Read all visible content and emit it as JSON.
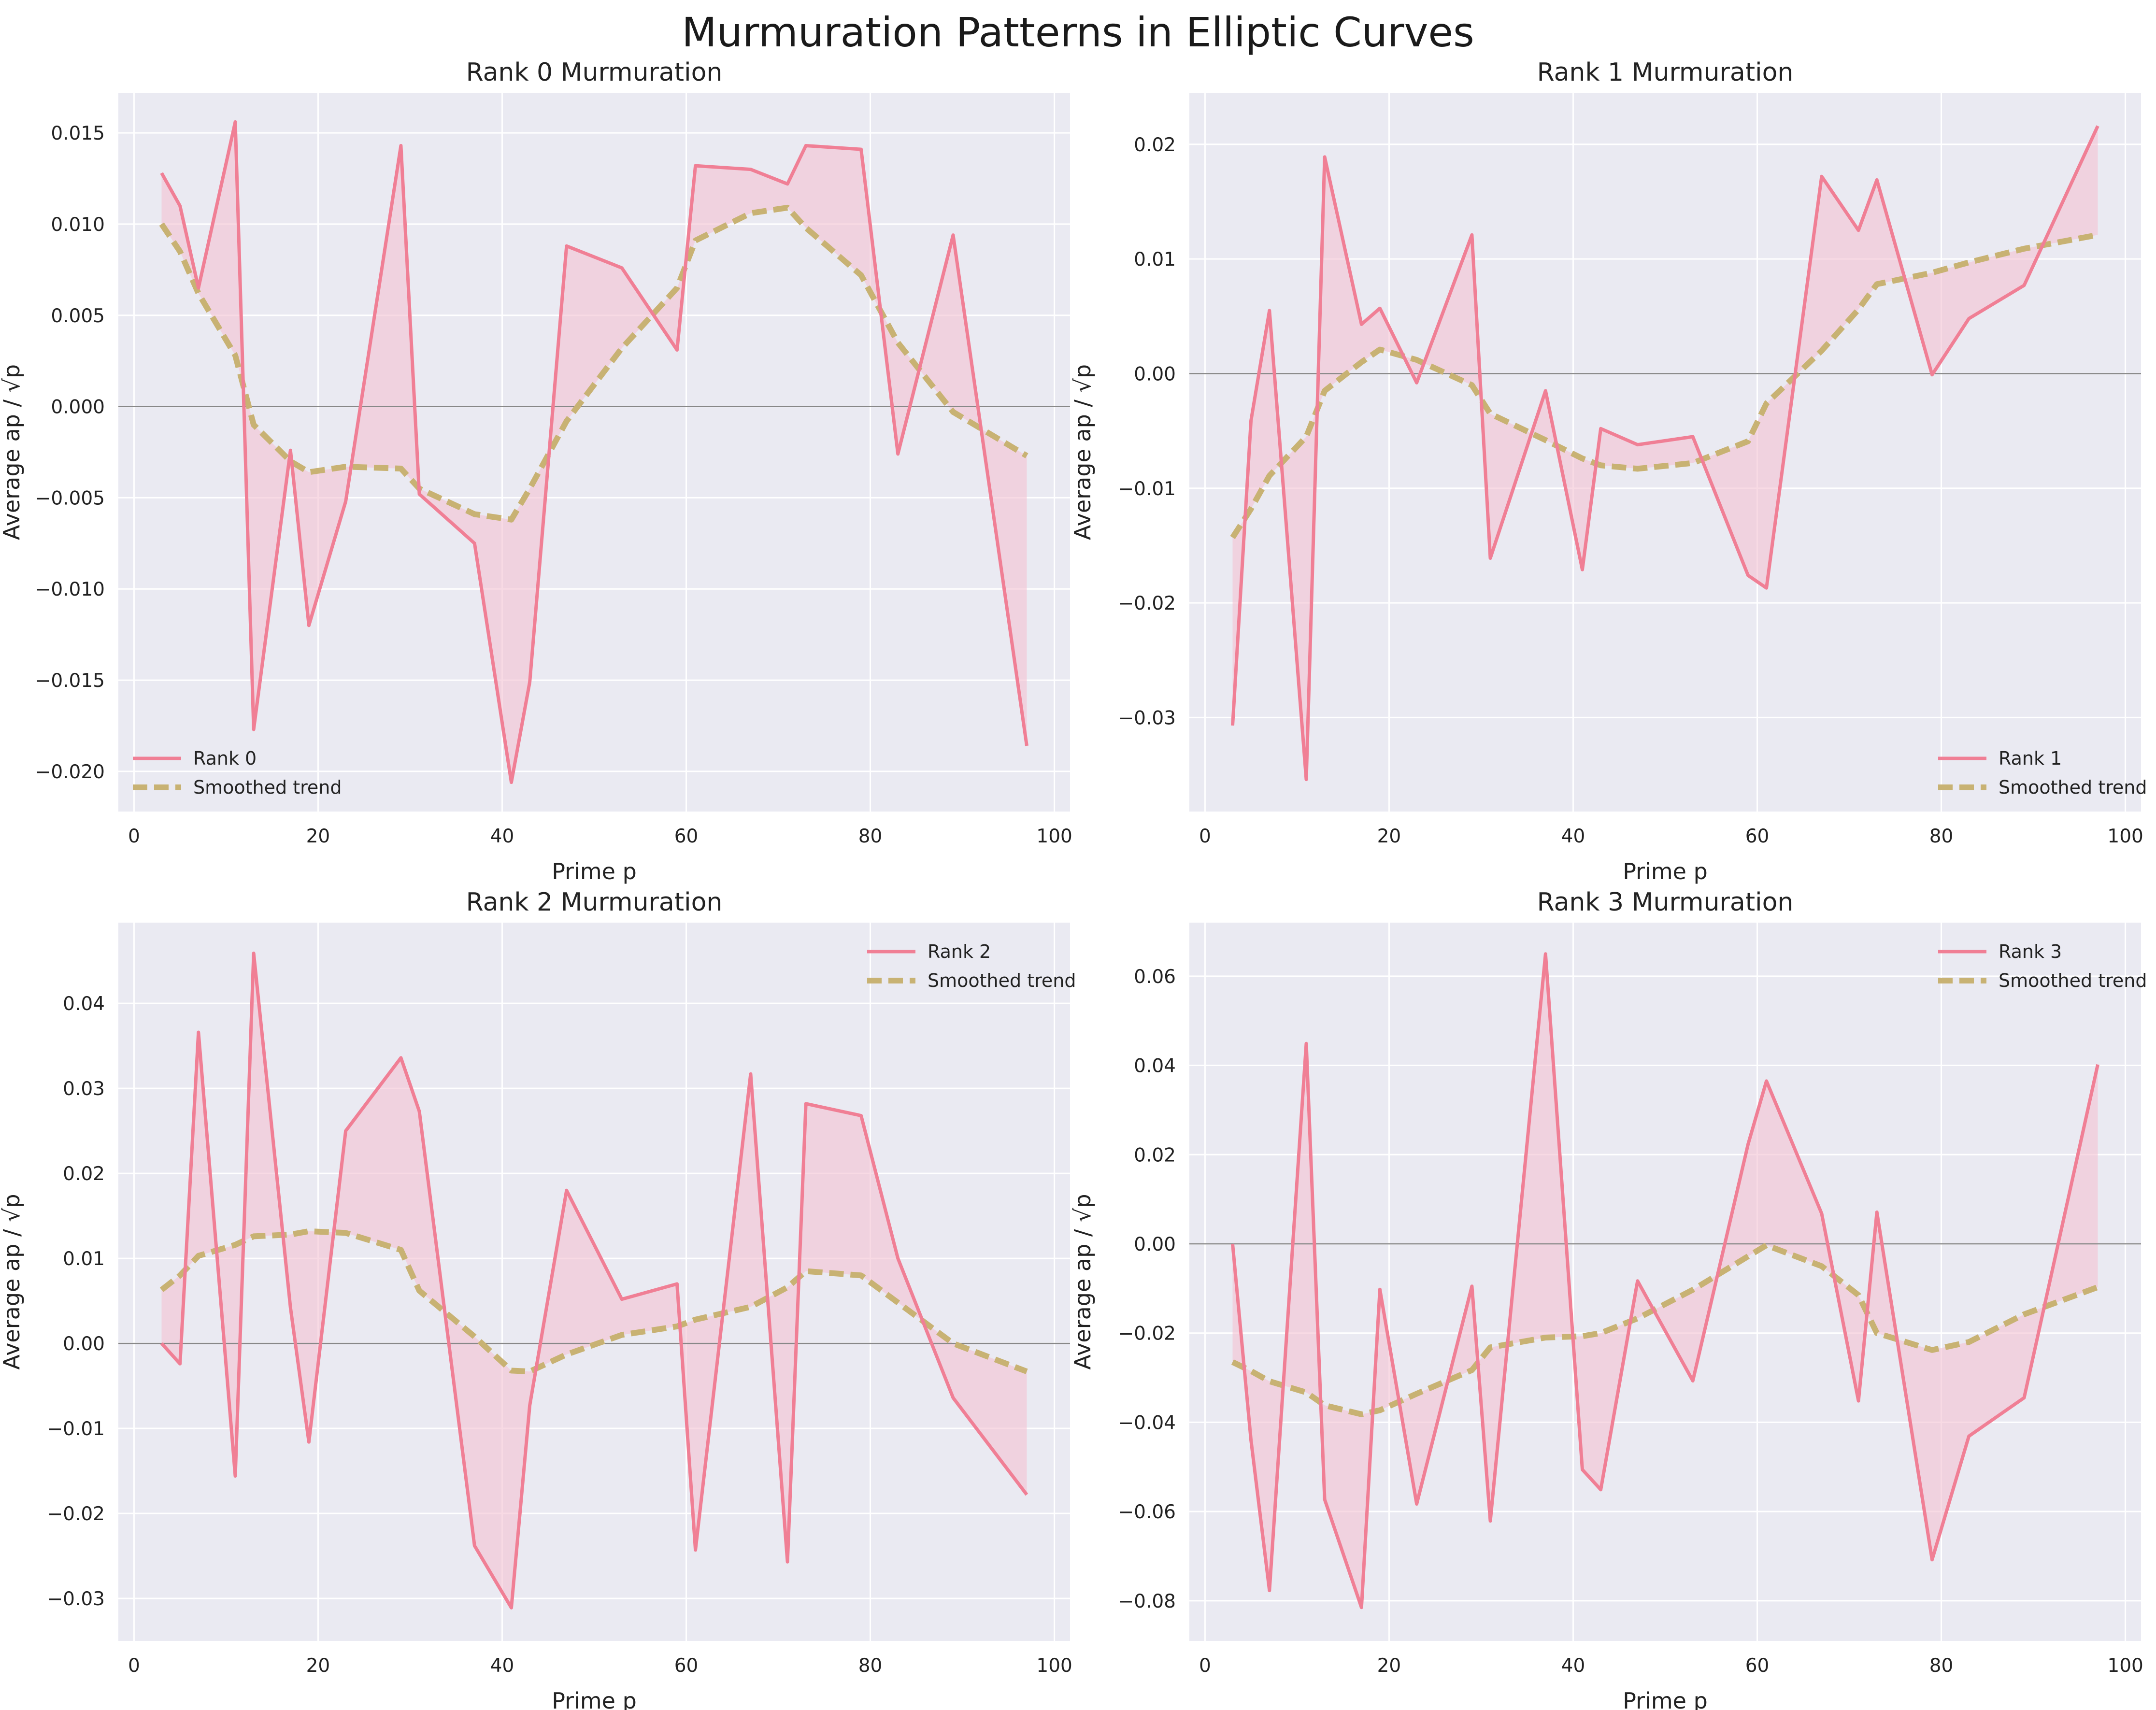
{
  "figure": {
    "title": "Murmuration Patterns in Elliptic Curves"
  },
  "colors": {
    "data_line": "#f07f95",
    "fill": "#f3c2d2",
    "trend": "#c8b273",
    "panel_bg": "#eaeaf2",
    "zero_line": "#888888"
  },
  "chart_data": [
    {
      "type": "line",
      "title": "Rank 0 Murmuration",
      "xlabel": "Prime p",
      "ylabel": "Average ap / √p",
      "xlim": [
        -1.7,
        101.7
      ],
      "ylim": [
        -0.0222,
        0.0172
      ],
      "xticks": [
        0,
        20,
        40,
        60,
        80,
        100
      ],
      "xtick_labels": [
        "0",
        "20",
        "40",
        "60",
        "80",
        "100"
      ],
      "yticks": [
        -0.02,
        -0.015,
        -0.01,
        -0.005,
        0,
        0.005,
        0.01,
        0.015
      ],
      "ytick_labels": [
        "−0.020",
        "−0.015",
        "−0.010",
        "−0.005",
        "0.000",
        "0.005",
        "0.010",
        "0.015"
      ],
      "legend_position": "lower-left",
      "x": [
        3,
        5,
        7,
        11,
        13,
        17,
        19,
        23,
        29,
        31,
        37,
        41,
        43,
        47,
        53,
        59,
        61,
        67,
        71,
        73,
        79,
        83,
        89,
        97
      ],
      "series": [
        {
          "name": "Rank 0",
          "style": "solid",
          "values": [
            0.0128,
            0.011,
            0.0065,
            0.0156,
            -0.0177,
            -0.0024,
            -0.012,
            -0.0052,
            0.0143,
            -0.0048,
            -0.0075,
            -0.0206,
            -0.0151,
            0.0088,
            0.0076,
            0.0031,
            0.0132,
            0.013,
            0.0122,
            0.0143,
            0.0141,
            -0.0026,
            0.0094,
            -0.0186
          ]
        },
        {
          "name": "Smoothed trend",
          "style": "dashed",
          "values": [
            0.01,
            0.0085,
            0.0062,
            0.0028,
            -0.001,
            -0.003,
            -0.0036,
            -0.0033,
            -0.0034,
            -0.0045,
            -0.0059,
            -0.0062,
            -0.0045,
            -0.0008,
            0.0032,
            0.0065,
            0.0091,
            0.0106,
            0.0109,
            0.0098,
            0.0072,
            0.0035,
            -0.0003,
            -0.0027
          ]
        }
      ]
    },
    {
      "type": "line",
      "title": "Rank 1 Murmuration",
      "xlabel": "Prime p",
      "ylabel": "Average ap / √p",
      "xlim": [
        -1.7,
        101.7
      ],
      "ylim": [
        -0.0382,
        0.0245
      ],
      "xticks": [
        0,
        20,
        40,
        60,
        80,
        100
      ],
      "xtick_labels": [
        "0",
        "20",
        "40",
        "60",
        "80",
        "100"
      ],
      "yticks": [
        -0.03,
        -0.02,
        -0.01,
        0,
        0.01,
        0.02
      ],
      "ytick_labels": [
        "−0.03",
        "−0.02",
        "−0.01",
        "0.00",
        "0.01",
        "0.02"
      ],
      "legend_position": "lower-right",
      "x": [
        3,
        5,
        7,
        11,
        13,
        17,
        19,
        23,
        29,
        31,
        37,
        41,
        43,
        47,
        53,
        59,
        61,
        67,
        71,
        73,
        79,
        83,
        89,
        97
      ],
      "series": [
        {
          "name": "Rank 1",
          "style": "solid",
          "values": [
            -0.0307,
            -0.0041,
            0.0055,
            -0.0354,
            0.0189,
            0.0043,
            0.0057,
            -0.0008,
            0.0121,
            -0.0161,
            -0.0015,
            -0.0171,
            -0.0048,
            -0.0062,
            -0.0055,
            -0.0176,
            -0.0187,
            0.0172,
            0.0125,
            0.0169,
            -0.0001,
            0.0048,
            0.0077,
            0.0216
          ]
        },
        {
          "name": "Smoothed trend",
          "style": "dashed",
          "values": [
            -0.0143,
            -0.0118,
            -0.0089,
            -0.0055,
            -0.0015,
            0.001,
            0.0021,
            0.0012,
            -0.001,
            -0.0035,
            -0.0058,
            -0.0074,
            -0.008,
            -0.0083,
            -0.0078,
            -0.0059,
            -0.0026,
            0.002,
            0.0056,
            0.0078,
            0.0088,
            0.0097,
            0.0109,
            0.0121
          ]
        }
      ]
    },
    {
      "type": "line",
      "title": "Rank 2 Murmuration",
      "xlabel": "Prime p",
      "ylabel": "Average ap / √p",
      "xlim": [
        -1.7,
        101.7
      ],
      "ylim": [
        -0.035,
        0.0495
      ],
      "xticks": [
        0,
        20,
        40,
        60,
        80,
        100
      ],
      "xtick_labels": [
        "0",
        "20",
        "40",
        "60",
        "80",
        "100"
      ],
      "yticks": [
        -0.03,
        -0.02,
        -0.01,
        0,
        0.01,
        0.02,
        0.03,
        0.04
      ],
      "ytick_labels": [
        "−0.03",
        "−0.02",
        "−0.01",
        "0.00",
        "0.01",
        "0.02",
        "0.03",
        "0.04"
      ],
      "legend_position": "upper-right",
      "x": [
        3,
        5,
        7,
        11,
        13,
        17,
        19,
        23,
        29,
        31,
        37,
        41,
        43,
        47,
        53,
        59,
        61,
        67,
        71,
        73,
        79,
        83,
        89,
        97
      ],
      "series": [
        {
          "name": "Rank 2",
          "style": "solid",
          "values": [
            0.0,
            -0.0024,
            0.0366,
            -0.0156,
            0.0459,
            0.0042,
            -0.0116,
            0.025,
            0.0336,
            0.0273,
            -0.0238,
            -0.0311,
            -0.0073,
            0.018,
            0.0052,
            0.007,
            -0.0243,
            0.0317,
            -0.0257,
            0.0282,
            0.0268,
            0.01,
            -0.0064,
            -0.0178
          ]
        },
        {
          "name": "Smoothed trend",
          "style": "dashed",
          "values": [
            0.0063,
            0.008,
            0.0103,
            0.0116,
            0.0126,
            0.0128,
            0.0132,
            0.013,
            0.011,
            0.0062,
            0.0008,
            -0.0032,
            -0.0033,
            -0.0013,
            0.001,
            0.002,
            0.0028,
            0.0043,
            0.0066,
            0.0085,
            0.008,
            0.0048,
            0.0,
            -0.0033
          ]
        }
      ]
    },
    {
      "type": "line",
      "title": "Rank 3 Murmuration",
      "xlabel": "Prime p",
      "ylabel": "Average ap / √p",
      "xlim": [
        -1.7,
        101.7
      ],
      "ylim": [
        -0.089,
        0.072
      ],
      "xticks": [
        0,
        20,
        40,
        60,
        80,
        100
      ],
      "xtick_labels": [
        "0",
        "20",
        "40",
        "60",
        "80",
        "100"
      ],
      "yticks": [
        -0.08,
        -0.06,
        -0.04,
        -0.02,
        0,
        0.02,
        0.04,
        0.06
      ],
      "ytick_labels": [
        "−0.08",
        "−0.06",
        "−0.04",
        "−0.02",
        "0.00",
        "0.02",
        "0.04",
        "0.06"
      ],
      "legend_position": "upper-right",
      "x": [
        3,
        5,
        7,
        11,
        13,
        17,
        19,
        23,
        29,
        31,
        37,
        41,
        43,
        47,
        53,
        59,
        61,
        67,
        71,
        73,
        79,
        83,
        89,
        97
      ],
      "series": [
        {
          "name": "Rank 3",
          "style": "solid",
          "values": [
            0.0,
            -0.044,
            -0.0777,
            0.0449,
            -0.0573,
            -0.0815,
            -0.0102,
            -0.0583,
            -0.0095,
            -0.0621,
            0.065,
            -0.0506,
            -0.0551,
            -0.0083,
            -0.0307,
            0.0223,
            0.0365,
            0.0068,
            -0.0352,
            0.0071,
            -0.0708,
            -0.0431,
            -0.0345,
            0.0402
          ]
        },
        {
          "name": "Smoothed trend",
          "style": "dashed",
          "values": [
            -0.0265,
            -0.0285,
            -0.0308,
            -0.0333,
            -0.0362,
            -0.0382,
            -0.0373,
            -0.0336,
            -0.0283,
            -0.0232,
            -0.021,
            -0.0207,
            -0.02,
            -0.0167,
            -0.0103,
            -0.0028,
            -0.0003,
            -0.005,
            -0.0115,
            -0.02,
            -0.0238,
            -0.022,
            -0.0158,
            -0.0097
          ]
        }
      ]
    }
  ]
}
